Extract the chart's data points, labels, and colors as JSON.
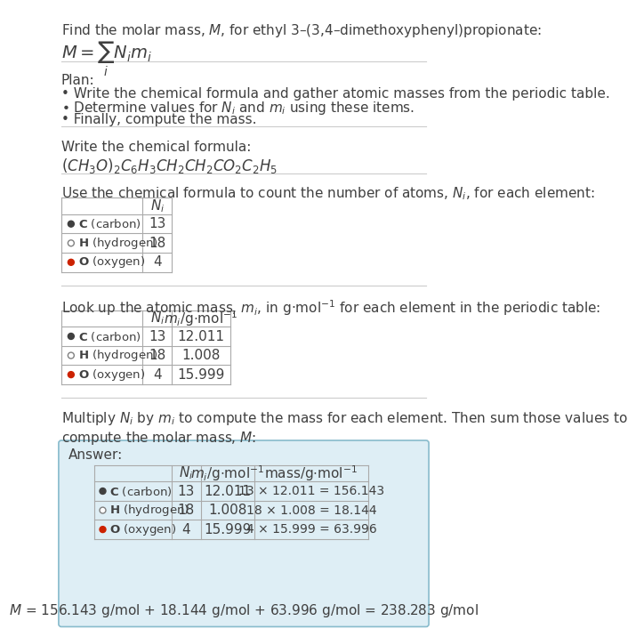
{
  "title_line1": "Find the molar mass, ",
  "title_M": "M",
  "title_line2": ", for ethyl 3–(3,4–dimethoxyphenyl)propionate:",
  "bg_color": "#ffffff",
  "elements": [
    "C (carbon)",
    "H (hydrogen)",
    "O (oxygen)"
  ],
  "element_symbols": [
    "C",
    "H",
    "O"
  ],
  "dot_colors": [
    "#404040",
    "#ffffff",
    "#cc2200"
  ],
  "dot_border": [
    "#404040",
    "#808080",
    "#cc2200"
  ],
  "N_i": [
    13,
    18,
    4
  ],
  "m_i": [
    "12.011",
    "1.008",
    "15.999"
  ],
  "mass_expr": [
    "13 × 12.011 = 156.143",
    "18 × 1.008 = 18.144",
    "4 × 15.999 = 63.996"
  ],
  "final_eq": "$M$ = 156.143 g/mol + 18.144 g/mol + 63.996 g/mol = 238.283 g/mol",
  "text_color": "#404040",
  "table_line_color": "#aaaaaa",
  "answer_box_edge": "#88bbcc",
  "answer_box_face": "#deeef5"
}
